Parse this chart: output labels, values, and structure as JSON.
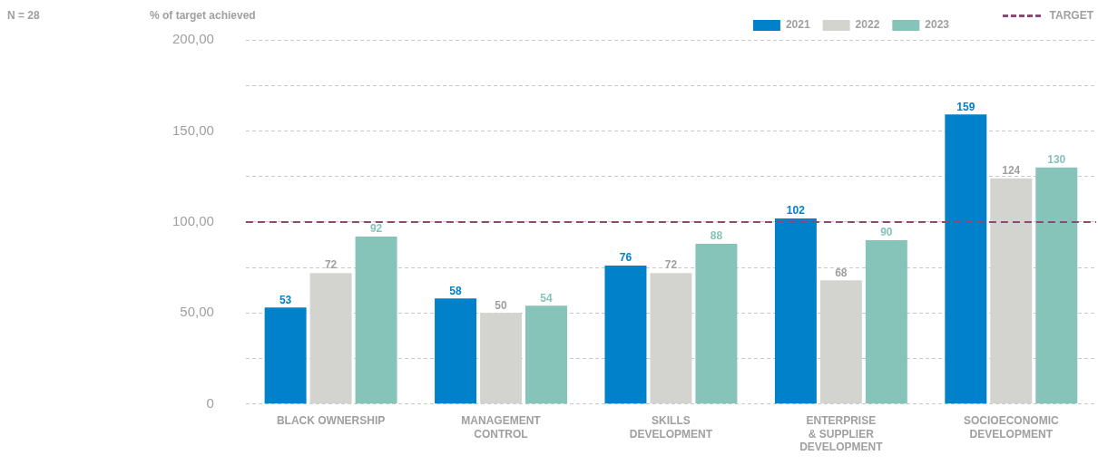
{
  "chart_data": {
    "type": "bar",
    "ylabel": "% of target achieved",
    "annotations": [
      "N = 28"
    ],
    "categories": [
      "BLACK OWNERSHIP",
      "MANAGEMENT CONTROL",
      "SKILLS DEVELOPMENT",
      "ENTERPRISE & SUPPLIER DEVELOPMENT",
      "SOCIOECONOMIC DEVELOPMENT"
    ],
    "series": [
      {
        "name": "2021",
        "color": "#0081c9",
        "values": [
          53,
          58,
          76,
          102,
          159
        ]
      },
      {
        "name": "2022",
        "color": "#d3d3cf",
        "values": [
          72,
          50,
          72,
          68,
          124
        ]
      },
      {
        "name": "2023",
        "color": "#86c4b9",
        "values": [
          92,
          54,
          88,
          90,
          130
        ]
      }
    ],
    "ylim": [
      0,
      200
    ],
    "yticks": [
      0,
      {
        "value": 25,
        "label": null
      },
      {
        "value": 50,
        "label": "50,00"
      },
      {
        "value": 75,
        "label": null
      },
      {
        "value": 100,
        "label": "100,00"
      },
      {
        "value": 125,
        "label": null
      },
      {
        "value": 150,
        "label": "150,00"
      },
      {
        "value": 175,
        "label": null
      },
      {
        "value": 200,
        "label": "200,00"
      }
    ],
    "ref_lines": [
      {
        "axis": "y",
        "value": 100,
        "label": "TARGET",
        "color": "#8b4a72",
        "line_style": "dashed"
      }
    ],
    "grid": "y",
    "legend": "top right",
    "data_labels": true
  }
}
